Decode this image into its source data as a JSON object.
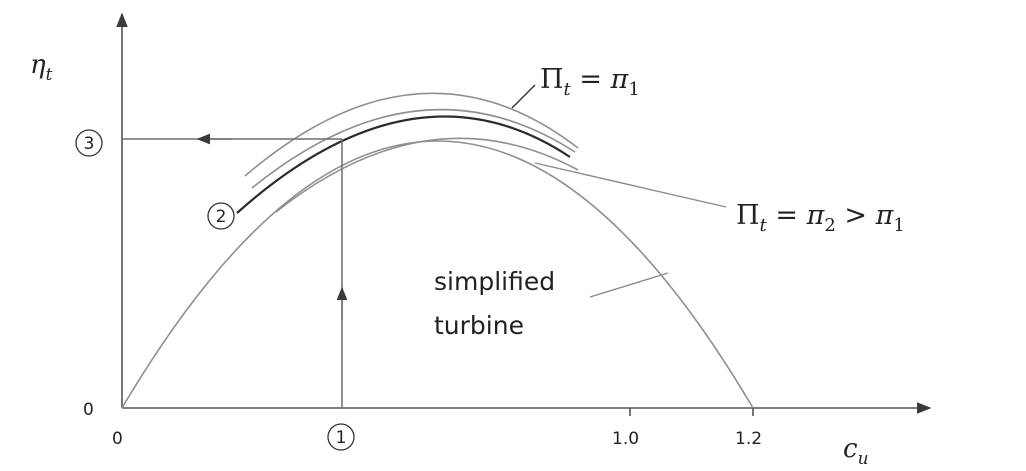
{
  "axes": {
    "y_label": "η",
    "y_label_sub": "t",
    "x_label": "c",
    "x_label_sub": "u",
    "origin_y": "0",
    "origin_x": "0",
    "x_ticks": [
      "1.0",
      "1.2"
    ]
  },
  "markers": {
    "m1": "1",
    "m2": "2",
    "m3": "3"
  },
  "labels": {
    "pi1": {
      "pi": "Π",
      "sub": "t",
      "rest": " = π",
      "rest_sub": "1"
    },
    "pi2": {
      "pi": "Π",
      "sub": "t",
      "rest": " = π",
      "rest_sub": "2",
      "tail": " > π",
      "tail_sub": "1"
    },
    "simplified_line1": "simplified",
    "simplified_line2": "turbine"
  }
}
